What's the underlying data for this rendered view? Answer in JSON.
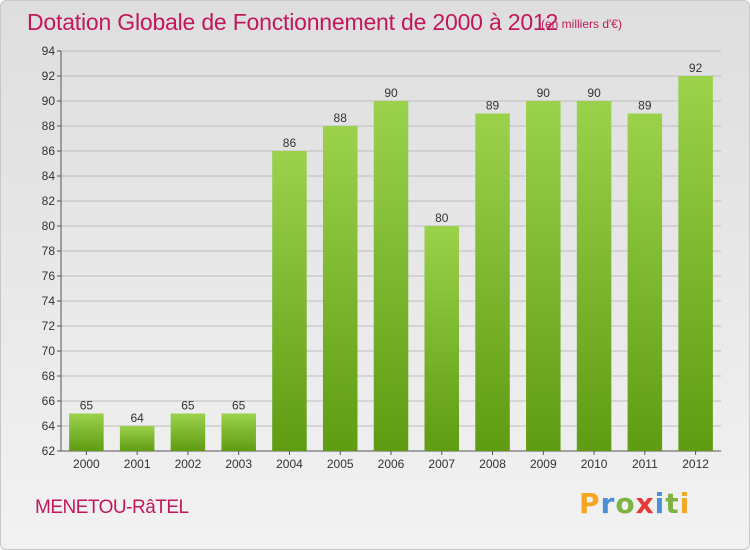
{
  "chart_data": {
    "type": "bar",
    "title": "Dotation Globale de Fonctionnement de 2000 à 2012",
    "subtitle": "(en milliers d'€)",
    "categories": [
      "2000",
      "2001",
      "2002",
      "2003",
      "2004",
      "2005",
      "2006",
      "2007",
      "2008",
      "2009",
      "2010",
      "2011",
      "2012"
    ],
    "values": [
      65,
      64,
      65,
      65,
      86,
      88,
      90,
      80,
      89,
      90,
      90,
      89,
      92
    ],
    "ylim": [
      62,
      94
    ],
    "ytick_step": 2,
    "grid": true,
    "bar_color_top": "#9bd24c",
    "bar_color_bottom": "#5f9c12"
  },
  "footer": {
    "commune": "MENETOU-RâTEL",
    "brand_letters": [
      "P",
      "r",
      "o",
      "x",
      "i",
      "t",
      "i"
    ],
    "brand_colors": [
      "#f5a623",
      "#4a90d9",
      "#7cb342",
      "#e53935",
      "#4a90d9",
      "#7cb342",
      "#f5a623"
    ]
  }
}
